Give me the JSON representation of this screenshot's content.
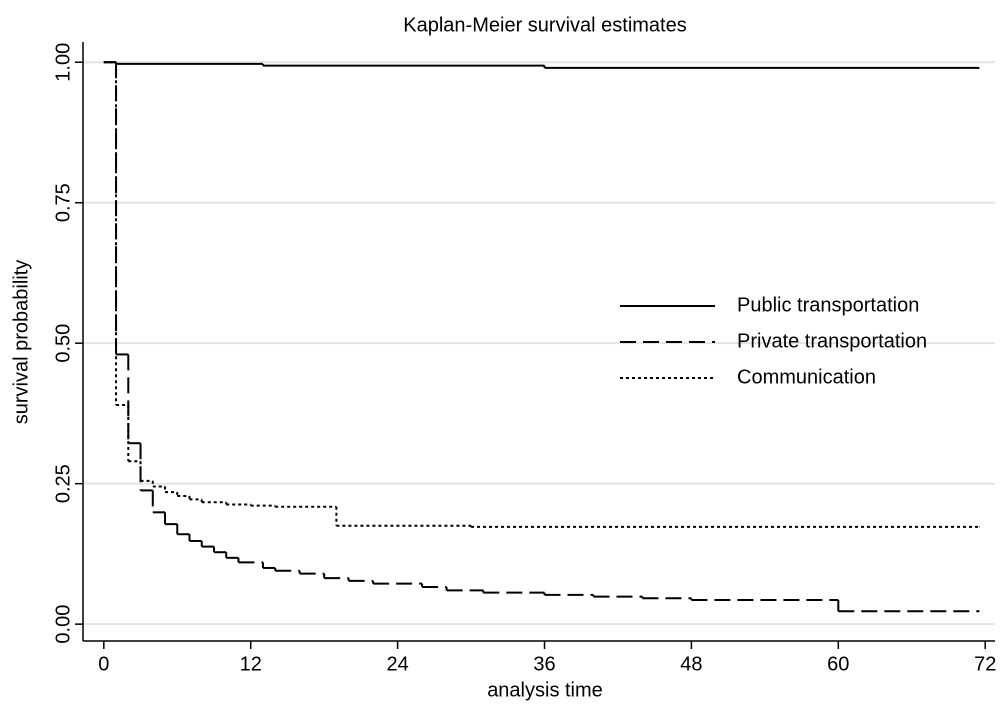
{
  "chart_data": {
    "type": "step",
    "title": "Kaplan-Meier survival estimates",
    "x_label": "analysis time",
    "y_label": "survival probability",
    "xlim": [
      -1.7,
      72.8
    ],
    "ylim": [
      -0.03,
      1.036
    ],
    "xticks": [
      0,
      12,
      24,
      36,
      48,
      60,
      72
    ],
    "yticks": [
      {
        "value": 0,
        "label": "0.00"
      },
      0.25,
      {
        "value": 0.5,
        "label": "0.50"
      },
      0.75,
      {
        "value": 1,
        "label": "1.00"
      }
    ],
    "grid": true,
    "legend": "right",
    "series": [
      {
        "name": "Public transportation",
        "color": "#000000",
        "line_style": "solid",
        "x": [
          0,
          1,
          13,
          36,
          71.5
        ],
        "values": [
          1.0,
          0.997,
          0.994,
          0.99,
          0.989
        ]
      },
      {
        "name": "Private transportation",
        "color": "#000000",
        "line_style": "dashed",
        "x": [
          0,
          1,
          2,
          3,
          4,
          5,
          6,
          7,
          8,
          9,
          10,
          11,
          13,
          14,
          16,
          18,
          20,
          22,
          26,
          28,
          31,
          36,
          40,
          44,
          48,
          60,
          71.5
        ],
        "values": [
          1.0,
          0.48,
          0.322,
          0.238,
          0.199,
          0.178,
          0.16,
          0.148,
          0.138,
          0.128,
          0.118,
          0.11,
          0.1,
          0.095,
          0.09,
          0.082,
          0.077,
          0.072,
          0.066,
          0.06,
          0.056,
          0.052,
          0.049,
          0.046,
          0.043,
          0.023,
          0.023
        ]
      },
      {
        "name": "Communication",
        "color": "#000000",
        "line_style": "dotted",
        "x": [
          0,
          1,
          2,
          3,
          4,
          5,
          6,
          7,
          8,
          10,
          12,
          14,
          19,
          30,
          71.5
        ],
        "values": [
          1.0,
          0.39,
          0.29,
          0.255,
          0.245,
          0.235,
          0.228,
          0.222,
          0.217,
          0.213,
          0.211,
          0.209,
          0.175,
          0.173,
          0.173
        ]
      }
    ]
  }
}
